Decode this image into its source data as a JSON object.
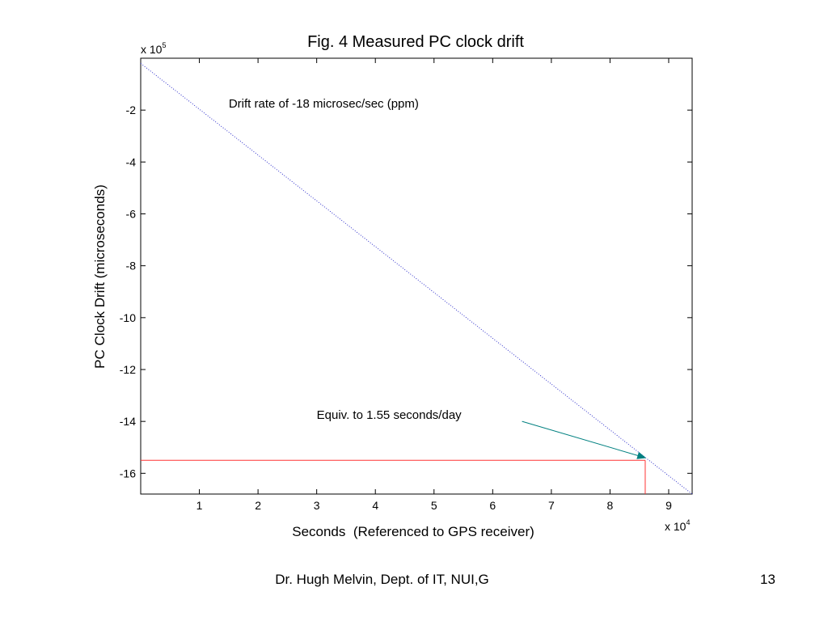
{
  "slide": {
    "author": "Dr. Hugh Melvin, Dept. of IT, NUI,G",
    "page_number": "13"
  },
  "chart_data": {
    "type": "line",
    "title": "Fig. 4 Measured PC clock drift",
    "xlabel": "Seconds  (Referenced to GPS receiver)",
    "ylabel": "PC Clock Drift (microseconds)",
    "x_multiplier": {
      "base": "x 10",
      "exponent": "4"
    },
    "y_multiplier": {
      "base": "x 10",
      "exponent": "5"
    },
    "xlim": [
      0,
      9.4
    ],
    "ylim": [
      -16.8,
      0
    ],
    "x_ticks": [
      1,
      2,
      3,
      4,
      5,
      6,
      7,
      8,
      9
    ],
    "y_ticks": [
      -2,
      -4,
      -6,
      -8,
      -10,
      -12,
      -14,
      -16
    ],
    "grid": false,
    "series": [
      {
        "color": "#3333cc",
        "style": "dotted",
        "x": [
          0,
          9.4
        ],
        "y": [
          -0.2,
          -16.8
        ]
      }
    ],
    "reference_lines": {
      "color": "#ff3333",
      "horizontal_y": -15.5,
      "vertical_x": 8.6
    },
    "annotations": [
      {
        "text": "Drift rate of -18 microsec/sec (ppm)",
        "x": 1.5,
        "y": -1.9
      },
      {
        "text": "Equiv. to 1.55 seconds/day",
        "x": 3.0,
        "y": -13.9,
        "arrow": {
          "color": "#008080",
          "from": [
            6.5,
            -14.0
          ],
          "to": [
            8.6,
            -15.4
          ]
        }
      }
    ]
  }
}
